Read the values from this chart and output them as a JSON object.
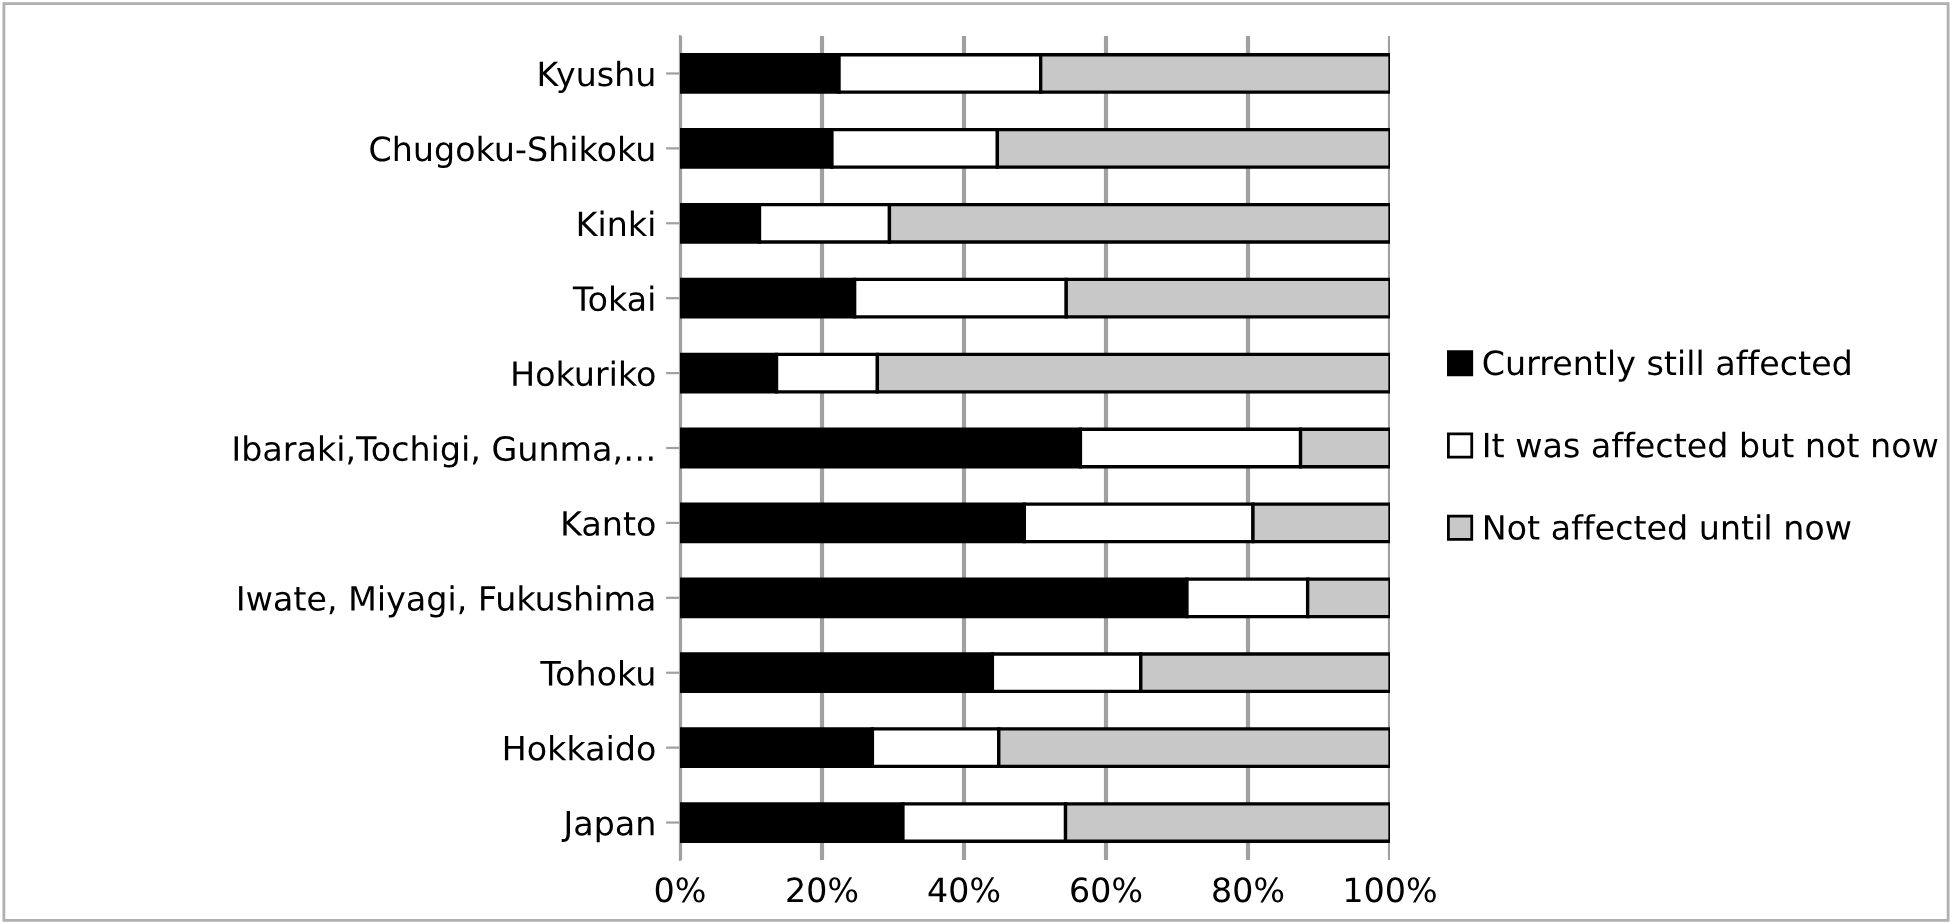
{
  "chart_data": {
    "type": "bar",
    "orientation": "horizontal",
    "stacked": true,
    "categories": [
      "Kyushu",
      "Chugoku-Shikoku",
      "Kinki",
      "Tokai",
      "Hokuriko",
      "Ibaraki,Tochigi, Gunma,…",
      "Kanto",
      "Iwate, Miyagi, Fukushima",
      "Tohoku",
      "Hokkaido",
      "Japan"
    ],
    "series": [
      {
        "name": "Currently still affected",
        "color": "#000000",
        "values": [
          22.4,
          21.4,
          11.2,
          24.6,
          13.6,
          56.4,
          48.5,
          71.4,
          44.0,
          27.1,
          31.4
        ]
      },
      {
        "name": "It was affected but not now",
        "color": "#ffffff",
        "values": [
          28.4,
          23.3,
          18.3,
          29.8,
          14.2,
          31.0,
          32.2,
          17.0,
          20.9,
          17.8,
          22.9
        ]
      },
      {
        "name": "Not affected until now",
        "color": "#c8c8c8",
        "values": [
          49.2,
          55.3,
          70.5,
          45.6,
          72.2,
          12.6,
          19.3,
          11.6,
          35.1,
          55.1,
          45.7
        ]
      }
    ],
    "xlim": [
      0,
      100
    ],
    "xticks": [
      {
        "value": 0,
        "label": "0%"
      },
      {
        "value": 20,
        "label": "20%"
      },
      {
        "value": 40,
        "label": "40%"
      },
      {
        "value": 60,
        "label": "60%"
      },
      {
        "value": 80,
        "label": "80%"
      },
      {
        "value": 100,
        "label": "100%"
      }
    ],
    "grid": "x",
    "legend": "right"
  }
}
